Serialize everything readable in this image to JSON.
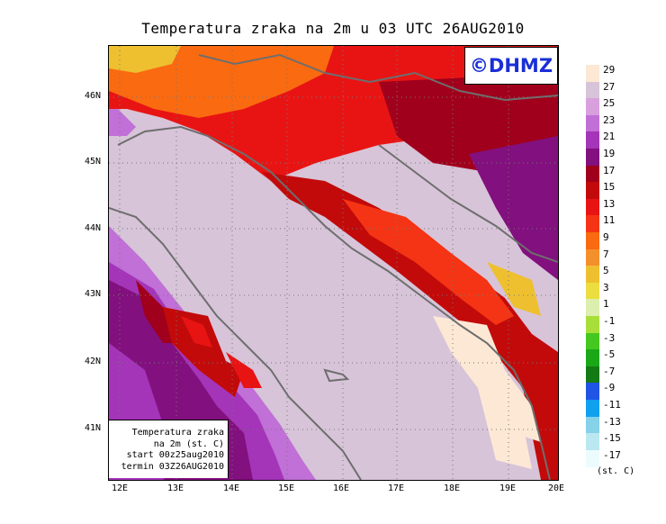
{
  "title": "Temperatura zraka na 2m u 03 UTC 26AUG2010",
  "logo": "©DHMZ",
  "info_box": {
    "line1": "Temperatura zraka",
    "line2": "na 2m (st. C)",
    "line3": "start 00z25aug2010",
    "line4": "termin 03Z26AUG2010"
  },
  "y_axis_labels": [
    "46N",
    "45N",
    "44N",
    "43N",
    "42N",
    "41N"
  ],
  "x_axis_labels": [
    "12E",
    "13E",
    "14E",
    "15E",
    "16E",
    "17E",
    "18E",
    "19E",
    "20E"
  ],
  "legend": {
    "unit": "(st. C)",
    "labels": [
      "29",
      "27",
      "25",
      "23",
      "21",
      "19",
      "17",
      "15",
      "13",
      "11",
      "9",
      "7",
      "5",
      "3",
      "1",
      "-1",
      "-3",
      "-5",
      "-7",
      "-9",
      "-11",
      "-13",
      "-15",
      "-17"
    ],
    "colors": [
      "#fce8d5",
      "#d7c4d8",
      "#d8a1de",
      "#c070d6",
      "#a434b8",
      "#82107e",
      "#a0001c",
      "#c20a0a",
      "#e81414",
      "#f43414",
      "#fa6a10",
      "#f4902c",
      "#eec030",
      "#ecde40",
      "#dcefae",
      "#a8de3a",
      "#44c820",
      "#1aa818",
      "#137a14",
      "#2054e4",
      "#10a0f0",
      "#86d2e8",
      "#bbe8f0",
      "#ecfcfc"
    ]
  },
  "logo_color": "#1a2fd6"
}
